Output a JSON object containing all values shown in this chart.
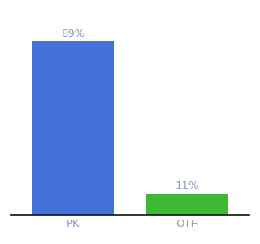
{
  "categories": [
    "PK",
    "OTH"
  ],
  "values": [
    89,
    11
  ],
  "bar_colors": [
    "#4472db",
    "#3cb832"
  ],
  "label_texts": [
    "89%",
    "11%"
  ],
  "background_color": "#ffffff",
  "ylim": [
    0,
    100
  ],
  "tick_color": "#8a9cc0",
  "label_fontsize": 9.5,
  "tick_fontsize": 9.5,
  "bar_width": 0.72,
  "xlim": [
    -0.55,
    1.55
  ]
}
